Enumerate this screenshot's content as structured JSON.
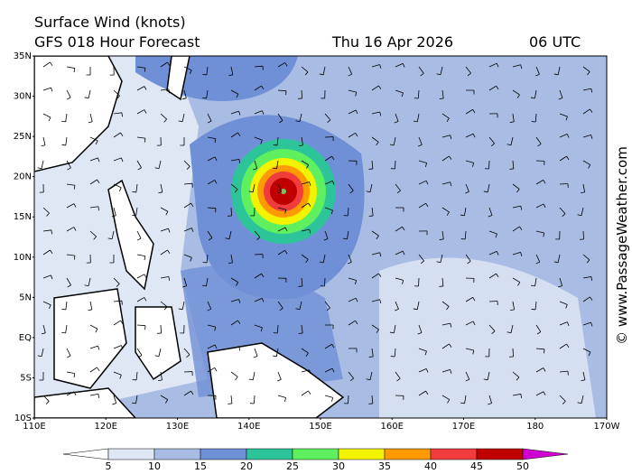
{
  "header": {
    "title": "Surface Wind (knots)",
    "subtitle": "GFS 018 Hour Forecast",
    "date": "Thu 16 Apr 2026",
    "time": "06 UTC"
  },
  "map": {
    "lat_labels": [
      "35N",
      "30N",
      "25N",
      "20N",
      "15N",
      "10N",
      "5N",
      "EQ",
      "5S",
      "10S"
    ],
    "lon_labels": [
      "110E",
      "120E",
      "130E",
      "140E",
      "150E",
      "160E",
      "170E",
      "180",
      "170W"
    ]
  },
  "colorbar": {
    "levels": [
      5,
      10,
      15,
      20,
      25,
      30,
      35,
      40,
      45,
      50
    ],
    "colors": [
      "#ffffff",
      "#dfe7f5",
      "#a9bde4",
      "#6f8fd6",
      "#2ec49a",
      "#5ef05e",
      "#f3f300",
      "#ff9a00",
      "#f03c3c",
      "#c00000",
      "#d000d0"
    ]
  },
  "credit": "© www.PassageWeather.com"
}
